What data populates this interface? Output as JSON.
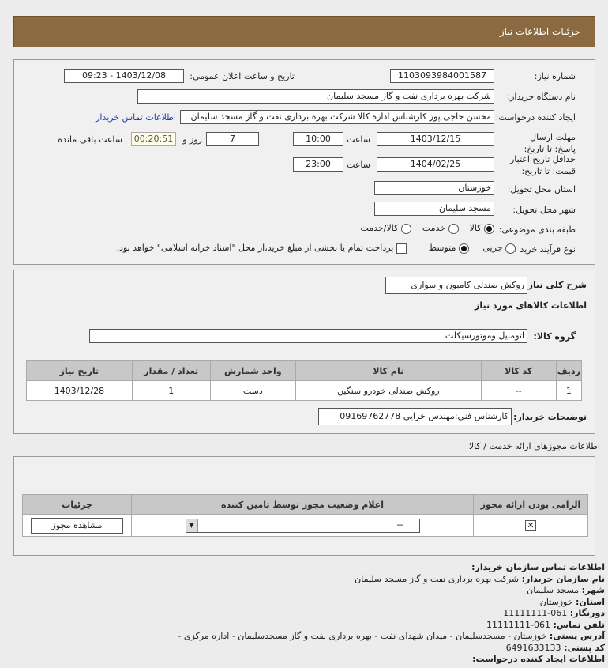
{
  "header": {
    "title": "جزئیات اطلاعات نیاز"
  },
  "form": {
    "need_number_label": "شماره نیاز:",
    "need_number": "1103093984001587",
    "announce_label": "تاریخ و ساعت اعلان عمومی:",
    "announce_value": "1403/12/08 - 09:23",
    "buyer_org_label": "نام دستگاه خریدار:",
    "buyer_org": "شرکت بهره برداری نفت و گاز مسجد سلیمان",
    "creator_label": "ایجاد کننده درخواست:",
    "creator": "محسن حاجی پور کارشناس اداره کالا  شرکت بهره برداری نفت و گاز مسجد سلیمان",
    "contact_link": "اطلاعات تماس خریدار",
    "deadline_label": "مهلت ارسال پاسخ: تا تاریخ:",
    "deadline_date": "1403/12/15",
    "time_label": "ساعت",
    "deadline_time": "10:00",
    "days": "7",
    "days_label": "روز و",
    "remaining": "00:20:51",
    "remaining_label": "ساعت باقی مانده",
    "validity_label": "حداقل تاریخ اعتبار قیمت: تا تاریخ:",
    "validity_date": "1404/02/25",
    "validity_time": "23:00",
    "province_label": "استان محل تحویل:",
    "province": "خوزستان",
    "city_label": "شهر محل تحویل:",
    "city": "مسجد سلیمان",
    "category_label": "طبقه بندی موضوعی:",
    "categories": [
      "کالا",
      "خدمت",
      "کالا/خدمت"
    ],
    "process_label": "نوع فرآیند خرید :",
    "processes": [
      "جزیی",
      "متوسط"
    ],
    "payment_note": "پرداخت تمام یا بخشی از مبلغ خرید،از محل \"اسناد خزانه اسلامی\" خواهد بود."
  },
  "details": {
    "desc_label": "شرح کلی نیاز:",
    "desc": "روکش صندلی کامیون و سواری",
    "goods_title": "اطلاعات کالاهای مورد نیاز",
    "group_label": "گروه کالا:",
    "group": "اتومبیل وموتورسیکلت",
    "columns": [
      "ردیف",
      "کد کالا",
      "نام کالا",
      "واحد شمارش",
      "تعداد / مقدار",
      "تاریخ نیاز"
    ],
    "rows": [
      [
        "1",
        "--",
        "روکش صندلی خودرو سنگین",
        "دست",
        "1",
        "1403/12/28"
      ]
    ],
    "buyer_notes_label": "توضیحات خریدار:",
    "buyer_notes": "کارشناس فنی:مهندس خزایی 09169762778"
  },
  "permits": {
    "title": "اطلاعات مجوزهای ارائه خدمت / کالا",
    "columns": [
      "الزامی بودن ارائه مجوز",
      "اعلام وضعیت مجوز توسط تامین کننده",
      "جزئیات"
    ],
    "select_value": "--",
    "view_button": "مشاهده مجوز"
  },
  "contact": {
    "title": "اطلاعات تماس سازمان خریدار:",
    "org_label": "نام سازمان خریدار:",
    "org": "شرکت بهره برداری نفت و گاز مسجد سلیمان",
    "city_label": "شهر:",
    "city": "مسجد سلیمان",
    "province_label": "استان:",
    "province": "خوزستان",
    "fax_label": "دورنگار:",
    "fax": "061-11111111",
    "phone_label": "تلفن تماس:",
    "phone": "061-11111111",
    "address_label": "آدرس پستی:",
    "address": "خوزستان - مسجدسلیمان - میدان شهدای نفت - بهره برداری نفت و گاز مسجدسلیمان - اداره مرکزی -",
    "postal_label": "کد پستی:",
    "postal": "6491633133",
    "creator_title": "اطلاعات ایجاد کننده درخواست:"
  }
}
